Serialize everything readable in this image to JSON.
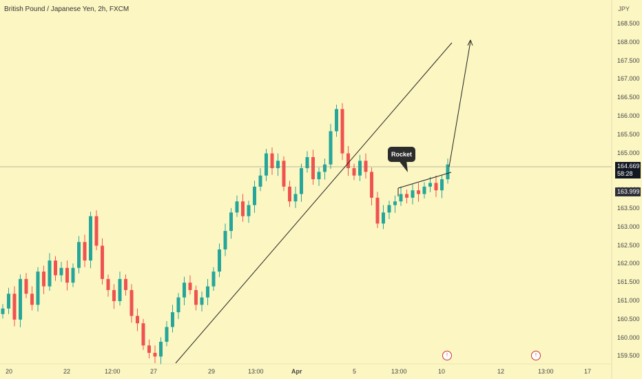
{
  "header": {
    "symbol_title": "British Pound / Japanese Yen, 2h, FXCM",
    "currency": "JPY"
  },
  "price_axis": {
    "labels": [
      "168.500",
      "168.000",
      "167.500",
      "167.000",
      "166.500",
      "166.000",
      "165.500",
      "165.000",
      "164.500",
      "164.000",
      "163.500",
      "163.000",
      "162.500",
      "162.000",
      "161.500",
      "161.000",
      "160.500",
      "160.000",
      "159.500"
    ]
  },
  "time_axis": {
    "labels": [
      "20",
      "22",
      "12:00",
      "27",
      "29",
      "13:00",
      "Apr",
      "5",
      "13:00",
      "10",
      "12",
      "13:00",
      "17"
    ]
  },
  "current_price": {
    "price": "164.669",
    "countdown": "58:28",
    "tag_color": "#131722"
  },
  "secondary_price": {
    "price": "163.999",
    "tag_color": "#2d3038"
  },
  "annotation": {
    "callout_text": "Rocket"
  },
  "colors": {
    "background": "#fcf6c2",
    "up_candle": "#26a69a",
    "down_candle": "#ef5350"
  },
  "chart_data": {
    "type": "candlestick",
    "title": "British Pound / Japanese Yen, 2h, FXCM",
    "ylabel": "JPY",
    "ylim": [
      159.4,
      168.9
    ],
    "close_path": [
      160.8,
      161.2,
      160.5,
      161.6,
      161.2,
      160.9,
      161.8,
      161.4,
      162.1,
      161.7,
      161.9,
      161.5,
      161.9,
      162.6,
      162.1,
      163.3,
      162.5,
      161.6,
      161.3,
      161.0,
      161.6,
      161.3,
      160.6,
      160.4,
      159.8,
      159.6,
      159.5,
      159.9,
      160.3,
      160.7,
      161.1,
      161.5,
      161.3,
      160.9,
      161.1,
      161.4,
      161.8,
      162.4,
      162.9,
      163.4,
      163.7,
      163.3,
      163.6,
      164.1,
      164.4,
      165.0,
      164.6,
      164.8,
      164.1,
      163.7,
      163.9,
      164.6,
      164.9,
      164.3,
      164.5,
      164.7,
      165.6,
      166.2,
      165.0,
      164.6,
      164.4,
      164.8,
      164.5,
      163.8,
      163.1,
      163.4,
      163.6,
      163.7,
      163.9,
      163.8,
      164.0,
      163.9,
      164.1,
      164.2,
      164.0,
      164.3,
      164.7
    ]
  }
}
